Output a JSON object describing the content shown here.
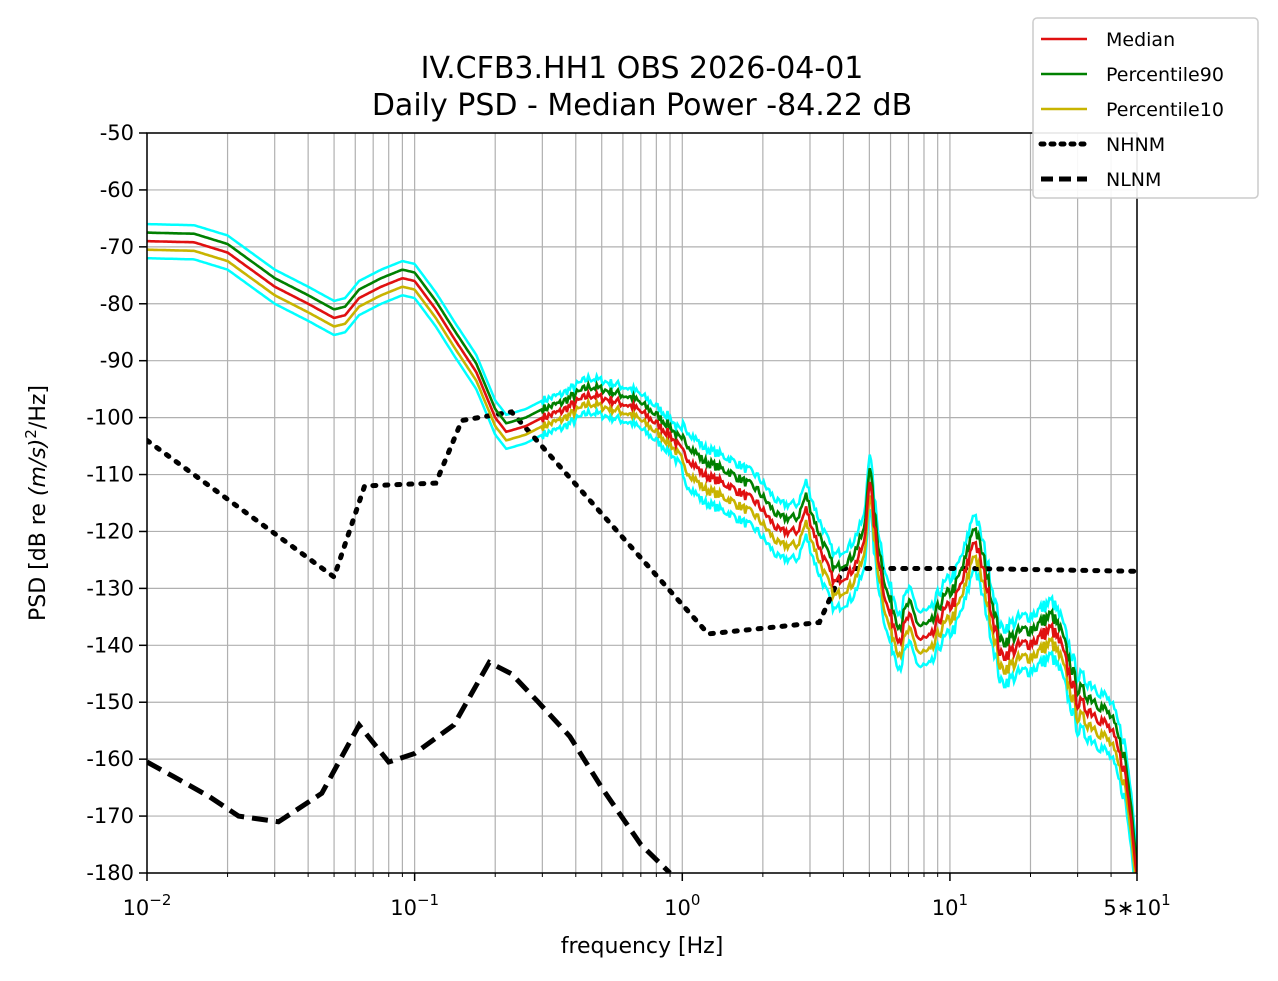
{
  "chart_data": {
    "type": "line",
    "title_line1": "IV.CFB3.HH1 OBS 2026-04-01",
    "title_line2": "Daily PSD - Median Power -84.22 dB",
    "xlabel": "frequency [Hz]",
    "ylabel_prefix": "PSD [dB re ",
    "ylabel_math": "(m/s)",
    "ylabel_exp": "2",
    "ylabel_suffix": "/Hz]",
    "x_scale": "log",
    "xlim": [
      0.01,
      50
    ],
    "ylim": [
      -180,
      -50
    ],
    "grid": true,
    "legend_placement": "top-right",
    "x_ticks": [
      {
        "value": 0.01,
        "base": "10",
        "exp": "−2"
      },
      {
        "value": 0.1,
        "base": "10",
        "exp": "−1"
      },
      {
        "value": 1,
        "base": "10",
        "exp": "0"
      },
      {
        "value": 10,
        "base": "10",
        "exp": "1"
      },
      {
        "value": 50,
        "base": "5∗10",
        "exp": "1"
      }
    ],
    "y_ticks": [
      {
        "value": -50,
        "label": "-50"
      },
      {
        "value": -60,
        "label": "-60"
      },
      {
        "value": -70,
        "label": "-70"
      },
      {
        "value": -80,
        "label": "-80"
      },
      {
        "value": -90,
        "label": "-90"
      },
      {
        "value": -100,
        "label": "-100"
      },
      {
        "value": -110,
        "label": "-110"
      },
      {
        "value": -120,
        "label": "-120"
      },
      {
        "value": -130,
        "label": "-130"
      },
      {
        "value": -140,
        "label": "-140"
      },
      {
        "value": -150,
        "label": "-150"
      },
      {
        "value": -160,
        "label": "-160"
      },
      {
        "value": -170,
        "label": "-170"
      },
      {
        "value": -180,
        "label": "-180"
      }
    ],
    "psd_profile": [
      [
        0.01,
        -69
      ],
      [
        0.015,
        -69.2
      ],
      [
        0.02,
        -71
      ],
      [
        0.03,
        -77
      ],
      [
        0.04,
        -80
      ],
      [
        0.05,
        -82.5
      ],
      [
        0.055,
        -82
      ],
      [
        0.062,
        -79
      ],
      [
        0.075,
        -77
      ],
      [
        0.09,
        -75.5
      ],
      [
        0.1,
        -76
      ],
      [
        0.12,
        -81
      ],
      [
        0.14,
        -86
      ],
      [
        0.17,
        -92
      ],
      [
        0.2,
        -100
      ],
      [
        0.22,
        -102.5
      ],
      [
        0.26,
        -101.5
      ],
      [
        0.3,
        -100
      ],
      [
        0.35,
        -99
      ],
      [
        0.45,
        -96
      ],
      [
        0.55,
        -97
      ],
      [
        0.65,
        -98
      ],
      [
        0.75,
        -100
      ],
      [
        0.9,
        -103
      ],
      [
        1.0,
        -106
      ],
      [
        1.2,
        -110
      ],
      [
        1.5,
        -112
      ],
      [
        1.9,
        -115
      ],
      [
        2.3,
        -120
      ],
      [
        2.7,
        -120
      ],
      [
        2.9,
        -116
      ],
      [
        3.2,
        -122
      ],
      [
        3.7,
        -129
      ],
      [
        4.3,
        -127
      ],
      [
        4.8,
        -122
      ],
      [
        5.0,
        -110
      ],
      [
        5.3,
        -122
      ],
      [
        5.8,
        -133
      ],
      [
        6.5,
        -139
      ],
      [
        7.0,
        -135
      ],
      [
        7.7,
        -139
      ],
      [
        8.5,
        -139
      ],
      [
        9.2,
        -135
      ],
      [
        10.5,
        -132
      ],
      [
        11.5,
        -127
      ],
      [
        12.3,
        -121
      ],
      [
        13.5,
        -128
      ],
      [
        15.5,
        -142
      ],
      [
        18.5,
        -140
      ],
      [
        21.0,
        -139
      ],
      [
        24.0,
        -137
      ],
      [
        26.0,
        -140
      ],
      [
        30.0,
        -150
      ],
      [
        35.0,
        -152
      ],
      [
        40.0,
        -155
      ],
      [
        45.0,
        -162
      ],
      [
        48.0,
        -172
      ],
      [
        50.0,
        -180
      ]
    ],
    "series": [
      {
        "name": "Median",
        "color": "#e01010",
        "offset_db": 0
      },
      {
        "name": "Percentile90",
        "color": "#008000",
        "offset_db": 1.5
      },
      {
        "name": "Percentile10",
        "color": "#c8b400",
        "offset_db": -1.5
      },
      {
        "name": "NHNM",
        "color": "#000000",
        "style": "dotted",
        "x": [
          0.01,
          0.05,
          0.065,
          0.12,
          0.15,
          0.23,
          1.25,
          3.25,
          4.0,
          12.0,
          50.0
        ],
        "values": [
          -104,
          -128,
          -112,
          -111.5,
          -100.5,
          -99,
          -138,
          -136,
          -126.5,
          -126.5,
          -127
        ]
      },
      {
        "name": "NLNM",
        "color": "#000000",
        "style": "dashed",
        "x": [
          0.01,
          0.0125,
          0.017,
          0.022,
          0.031,
          0.045,
          0.062,
          0.08,
          0.1,
          0.14,
          0.19,
          0.23,
          0.29,
          0.38,
          0.5,
          0.7,
          0.9
        ],
        "values": [
          -160.5,
          -163,
          -166.5,
          -170,
          -171,
          -166,
          -154,
          -160.5,
          -159,
          -154,
          -143,
          -145,
          -150,
          -156,
          -165,
          -175,
          -180
        ]
      }
    ],
    "envelope": {
      "color": "#00ffff",
      "offset_db": 3
    }
  }
}
